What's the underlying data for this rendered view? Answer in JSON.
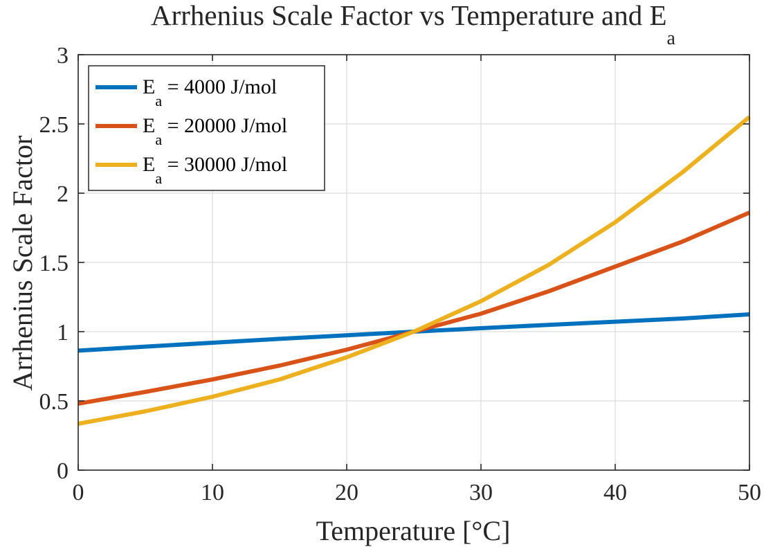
{
  "chart_data": {
    "type": "line",
    "title": {
      "main": "Arrhenius Scale Factor vs Temperature and E",
      "subscript": "a"
    },
    "xlabel": "Temperature [°C]",
    "ylabel": "Arrhenius Scale Factor",
    "xlim": [
      0,
      50
    ],
    "ylim": [
      0,
      3
    ],
    "xticks": [
      0,
      10,
      20,
      30,
      40,
      50
    ],
    "xtick_labels": [
      "0",
      "10",
      "20",
      "30",
      "40",
      "50"
    ],
    "yticks": [
      0,
      0.5,
      1,
      1.5,
      2,
      2.5,
      3
    ],
    "ytick_labels": [
      "0",
      "0.5",
      "1",
      "1.5",
      "2",
      "2.5",
      "3"
    ],
    "grid": true,
    "legend_position": "top-left",
    "reference_temperature_c": 25,
    "x": [
      0,
      5,
      10,
      15,
      20,
      25,
      30,
      35,
      40,
      45,
      50
    ],
    "series": [
      {
        "name": {
          "prefix": "E",
          "subscript": "a",
          "suffix": " = 4000 J/mol"
        },
        "color": "#0072BD",
        "values": [
          0.863,
          0.892,
          0.92,
          0.948,
          0.974,
          1.0,
          1.025,
          1.049,
          1.072,
          1.095,
          1.125
        ]
      },
      {
        "name": {
          "prefix": "E",
          "subscript": "a",
          "suffix": " = 20000 J/mol"
        },
        "color": "#D95319",
        "values": [
          0.48,
          0.565,
          0.655,
          0.755,
          0.87,
          1.0,
          1.13,
          1.29,
          1.47,
          1.65,
          1.86
        ]
      },
      {
        "name": {
          "prefix": "E",
          "subscript": "a",
          "suffix": " = 30000 J/mol"
        },
        "color": "#EDB120",
        "values": [
          0.335,
          0.425,
          0.53,
          0.655,
          0.815,
          1.0,
          1.22,
          1.48,
          1.79,
          2.15,
          2.55
        ]
      }
    ]
  }
}
